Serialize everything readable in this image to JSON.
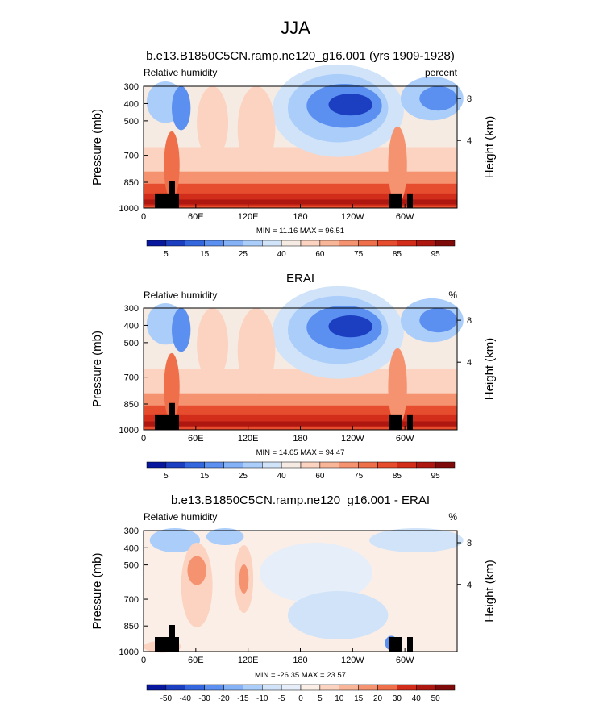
{
  "figure": {
    "main_title": "JJA"
  },
  "chart_data": [
    {
      "type": "heatmap",
      "title": "b.e13.B1850C5CN.ramp.ne120_g16.001 (yrs 1909-1928)",
      "left_label": "Relative humidity",
      "right_label": "percent",
      "ylabel": "Pressure (mb)",
      "ylabel_right": "Height (km)",
      "x_ticks": [
        "0",
        "60E",
        "120E",
        "180",
        "120W",
        "60W"
      ],
      "y_ticks": [
        "300",
        "400",
        "500",
        "700",
        "850",
        "1000"
      ],
      "y_ticks_right": [
        "8",
        "4"
      ],
      "min_max": "MIN = 11.16   MAX = 96.51",
      "colorbar_labels": [
        "5",
        "15",
        "25",
        "40",
        "60",
        "75",
        "85",
        "95"
      ],
      "colorbar_colors": [
        "#07189e",
        "#1c3fc1",
        "#3467dd",
        "#5b8ff0",
        "#85b2f7",
        "#aacdfa",
        "#d0e3f9",
        "#f6ebe3",
        "#fbd3c0",
        "#f9b597",
        "#f59371",
        "#ef6f4b",
        "#e54d2e",
        "#d12d1a",
        "#ae1710",
        "#7e0a0a"
      ],
      "ylim": [
        1000,
        300
      ],
      "grid": false
    },
    {
      "type": "heatmap",
      "title": "ERAI",
      "left_label": "Relative humidity",
      "right_label": "%",
      "ylabel": "Pressure (mb)",
      "ylabel_right": "Height (km)",
      "x_ticks": [
        "0",
        "60E",
        "120E",
        "180",
        "120W",
        "60W"
      ],
      "y_ticks": [
        "300",
        "400",
        "500",
        "700",
        "850",
        "1000"
      ],
      "y_ticks_right": [
        "8",
        "4"
      ],
      "min_max": "MIN = 14.65   MAX = 94.47",
      "colorbar_labels": [
        "5",
        "15",
        "25",
        "40",
        "60",
        "75",
        "85",
        "95"
      ],
      "colorbar_colors": [
        "#07189e",
        "#1c3fc1",
        "#3467dd",
        "#5b8ff0",
        "#85b2f7",
        "#aacdfa",
        "#d0e3f9",
        "#f6ebe3",
        "#fbd3c0",
        "#f9b597",
        "#f59371",
        "#ef6f4b",
        "#e54d2e",
        "#d12d1a",
        "#ae1710",
        "#7e0a0a"
      ],
      "ylim": [
        1000,
        300
      ],
      "grid": false
    },
    {
      "type": "heatmap",
      "title": "b.e13.B1850C5CN.ramp.ne120_g16.001 - ERAI",
      "left_label": "Relative humidity",
      "right_label": "%",
      "ylabel": "Pressure (mb)",
      "ylabel_right": "Height (km)",
      "x_ticks": [
        "0",
        "60E",
        "120E",
        "180",
        "120W",
        "60W"
      ],
      "y_ticks": [
        "300",
        "400",
        "500",
        "700",
        "850",
        "1000"
      ],
      "y_ticks_right": [
        "8",
        "4"
      ],
      "min_max": "MIN = -26.35   MAX = 23.57",
      "colorbar_labels": [
        "-50",
        "-40",
        "-30",
        "-20",
        "-15",
        "-10",
        "-5",
        "0",
        "5",
        "10",
        "15",
        "20",
        "30",
        "40",
        "50"
      ],
      "colorbar_colors": [
        "#07189e",
        "#1c3fc1",
        "#3467dd",
        "#5b8ff0",
        "#85b2f7",
        "#aacdfa",
        "#d0e3f9",
        "#e6eefa",
        "#fbeee6",
        "#fbd3c0",
        "#f9b597",
        "#f59371",
        "#ef6f4b",
        "#d12d1a",
        "#ae1710",
        "#7e0a0a"
      ],
      "ylim": [
        1000,
        300
      ],
      "grid": false
    }
  ]
}
